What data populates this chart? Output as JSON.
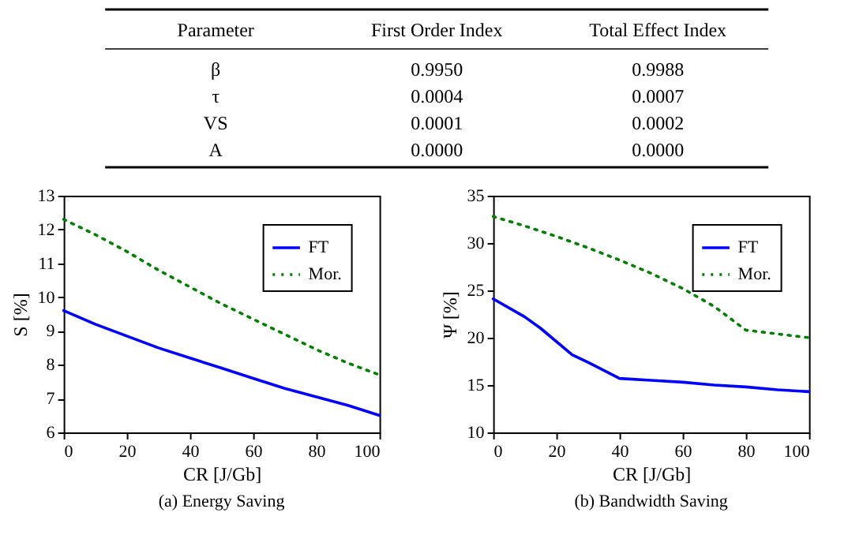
{
  "chart_data": [
    {
      "type": "other",
      "categories": [
        "Parameter",
        "First Order Index",
        "Total Effect Index"
      ],
      "annotations": [
        "β",
        "0.9950",
        "0.9988",
        "τ",
        "0.0004",
        "0.0007",
        "VS",
        "0.0001",
        "0.0002",
        "A",
        "0.0000",
        "0.0000"
      ]
    },
    {
      "type": "line",
      "title": "(a) Energy Saving",
      "xlabel": "CR [J/Gb]",
      "ylabel": "S [%]",
      "xlim": [
        0,
        100
      ],
      "xticks": [
        0,
        20,
        40,
        60,
        80,
        100
      ],
      "ylim": [
        6,
        13
      ],
      "yticks": [
        6,
        7,
        8,
        9,
        10,
        11,
        12,
        13
      ],
      "grid": false,
      "legend": "top right",
      "x": [
        0,
        10,
        20,
        30,
        40,
        50,
        60,
        70,
        80,
        90,
        100
      ],
      "series": [
        {
          "name": "FT",
          "color": "#0000ff",
          "line_style": "solid",
          "values": [
            9.6,
            9.2,
            8.85,
            8.5,
            8.2,
            7.9,
            7.6,
            7.3,
            7.05,
            6.8,
            6.5
          ]
        },
        {
          "name": "Mor.",
          "color": "#008000",
          "line_style": "dotted",
          "values": [
            12.3,
            11.85,
            11.35,
            10.8,
            10.3,
            9.8,
            9.35,
            8.9,
            8.45,
            8.05,
            7.7
          ]
        }
      ]
    },
    {
      "type": "line",
      "title": "(b) Bandwidth Saving",
      "xlabel": "CR [J/Gb]",
      "ylabel": "Ψ [%]",
      "xlim": [
        0,
        100
      ],
      "xticks": [
        0,
        20,
        40,
        60,
        80,
        100
      ],
      "ylim": [
        10,
        35
      ],
      "yticks": [
        10,
        15,
        20,
        25,
        30,
        35
      ],
      "grid": false,
      "legend": "top right",
      "series": [
        {
          "name": "FT",
          "color": "#0000ff",
          "line_style": "solid",
          "x": [
            0,
            10,
            15,
            25,
            30,
            40,
            50,
            60,
            70,
            80,
            90,
            100
          ],
          "values": [
            24.1,
            22.2,
            21,
            18.2,
            17.4,
            15.7,
            15.5,
            15.3,
            15.0,
            14.8,
            14.5,
            14.3
          ]
        },
        {
          "name": "Mor.",
          "color": "#008000",
          "line_style": "dotted",
          "x": [
            0,
            10,
            20,
            30,
            40,
            50,
            60,
            70,
            80,
            90,
            100
          ],
          "values": [
            32.8,
            31.8,
            30.7,
            29.5,
            28.2,
            26.8,
            25.2,
            23.3,
            20.8,
            20.4,
            20.0
          ]
        }
      ]
    }
  ]
}
